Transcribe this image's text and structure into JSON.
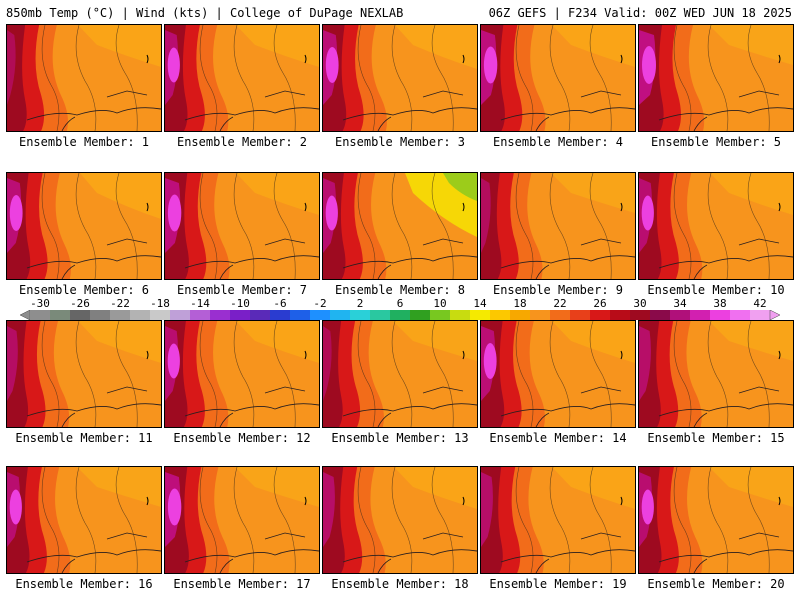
{
  "header": {
    "left": "850mb Temp (°C) | Wind (kts) | College of DuPage NEXLAB",
    "right": "06Z GEFS | F234 Valid: 00Z WED JUN 18 2025"
  },
  "panels": [
    {
      "label": "Ensemble Member: 1",
      "member": 1,
      "west_hot": 0.15,
      "east_cool": 0.05
    },
    {
      "label": "Ensemble Member: 2",
      "member": 2,
      "west_hot": 0.35,
      "east_cool": 0.05
    },
    {
      "label": "Ensemble Member: 3",
      "member": 3,
      "west_hot": 0.4,
      "east_cool": 0.1
    },
    {
      "label": "Ensemble Member: 4",
      "member": 4,
      "west_hot": 0.45,
      "east_cool": 0.05
    },
    {
      "label": "Ensemble Member: 5",
      "member": 5,
      "west_hot": 0.5,
      "east_cool": 0.0
    },
    {
      "label": "Ensemble Member: 6",
      "member": 6,
      "west_hot": 0.4,
      "east_cool": 0.15
    },
    {
      "label": "Ensemble Member: 7",
      "member": 7,
      "west_hot": 0.45,
      "east_cool": 0.05
    },
    {
      "label": "Ensemble Member: 8",
      "member": 8,
      "west_hot": 0.35,
      "east_cool": 0.6
    },
    {
      "label": "Ensemble Member: 9",
      "member": 9,
      "west_hot": 0.2,
      "east_cool": 0.0
    },
    {
      "label": "Ensemble Member: 10",
      "member": 10,
      "west_hot": 0.35,
      "east_cool": 0.05
    },
    {
      "label": "Ensemble Member: 11",
      "member": 11,
      "west_hot": 0.25,
      "east_cool": 0.05
    },
    {
      "label": "Ensemble Member: 12",
      "member": 12,
      "west_hot": 0.35,
      "east_cool": 0.05
    },
    {
      "label": "Ensemble Member: 13",
      "member": 13,
      "west_hot": 0.15,
      "east_cool": 0.0
    },
    {
      "label": "Ensemble Member: 14",
      "member": 14,
      "west_hot": 0.4,
      "east_cool": 0.05
    },
    {
      "label": "Ensemble Member: 15",
      "member": 15,
      "west_hot": 0.3,
      "east_cool": 0.0
    },
    {
      "label": "Ensemble Member: 16",
      "member": 16,
      "west_hot": 0.35,
      "east_cool": 0.0
    },
    {
      "label": "Ensemble Member: 17",
      "member": 17,
      "west_hot": 0.45,
      "east_cool": 0.0
    },
    {
      "label": "Ensemble Member: 18",
      "member": 18,
      "west_hot": 0.3,
      "east_cool": 0.05
    },
    {
      "label": "Ensemble Member: 19",
      "member": 19,
      "west_hot": 0.3,
      "east_cool": 0.05
    },
    {
      "label": "Ensemble Member: 20",
      "member": 20,
      "west_hot": 0.35,
      "east_cool": 0.0
    }
  ],
  "colorbar": {
    "ticks": [
      "-30",
      "-26",
      "-22",
      "-18",
      "-14",
      "-10",
      "-6",
      "-2",
      "2",
      "6",
      "10",
      "14",
      "18",
      "22",
      "26",
      "30",
      "34",
      "38",
      "42"
    ],
    "colors": [
      "#8e8e8e",
      "#7a8a7a",
      "#666666",
      "#808080",
      "#9a9a9a",
      "#b3b3b3",
      "#c9c9c9",
      "#bfa0d8",
      "#b45fd6",
      "#9a2fd0",
      "#7a1fc8",
      "#5a2ab8",
      "#2a3cd0",
      "#1e60e8",
      "#1e90ff",
      "#20b4f0",
      "#2ad0d8",
      "#2ac8a0",
      "#20b060",
      "#30a020",
      "#78c820",
      "#c8dc10",
      "#f5ea00",
      "#fcc800",
      "#f7a800",
      "#f7941d",
      "#f26c1a",
      "#e8401a",
      "#d81818",
      "#b80c18",
      "#9e0a20",
      "#8a0a4a",
      "#b0107a",
      "#d220b0",
      "#ec40e0",
      "#f070f0",
      "#f0a0f0"
    ]
  }
}
